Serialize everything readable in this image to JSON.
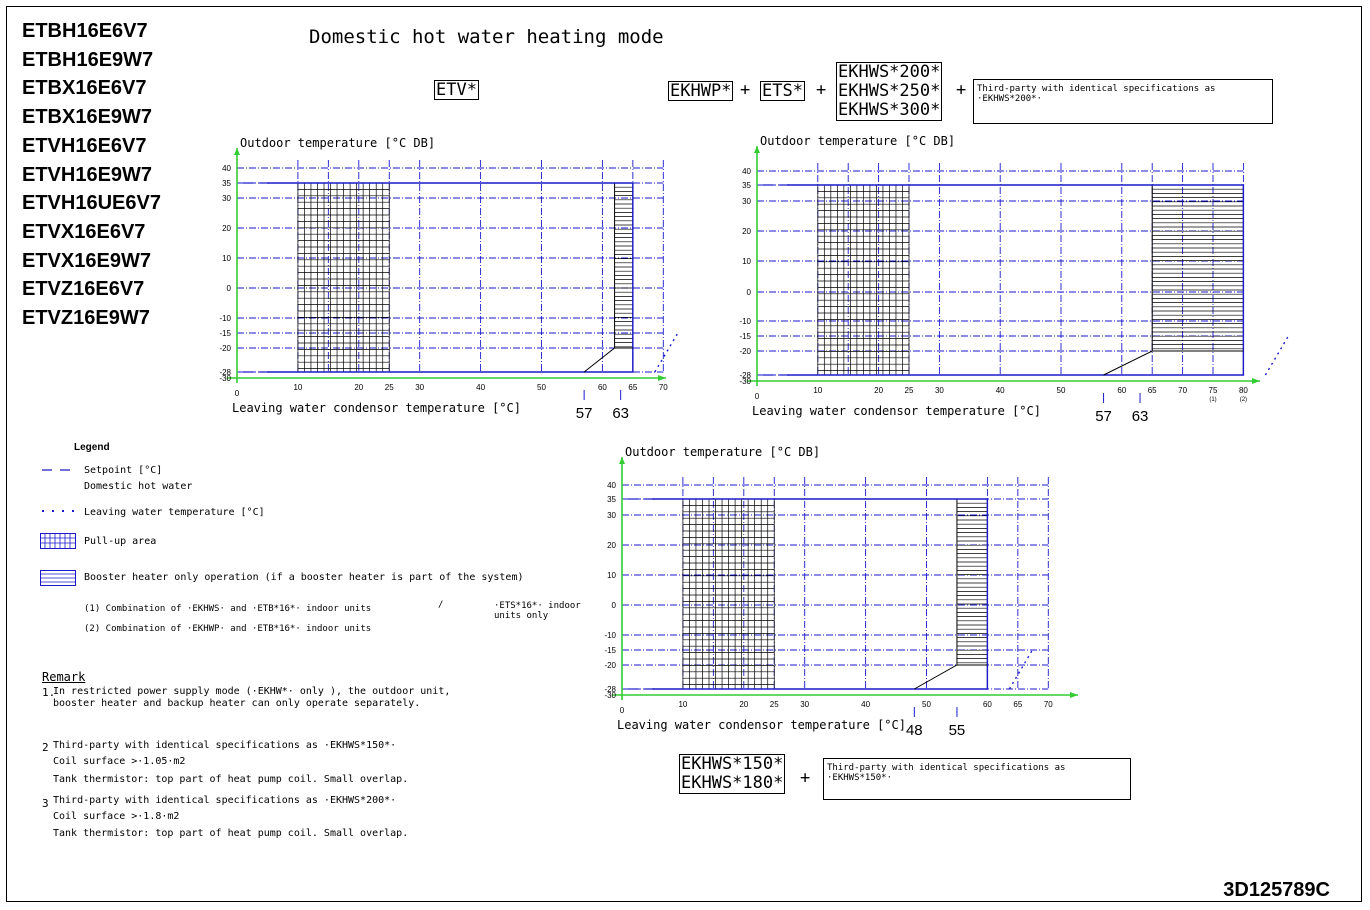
{
  "models": [
    "ETBH16E6V7",
    "ETBH16E9W7",
    "ETBX16E6V7",
    "ETBX16E9W7",
    "ETVH16E6V7",
    "ETVH16E9W7",
    "ETVH16UE6V7",
    "ETVX16E6V7",
    "ETVX16E9W7",
    "ETVZ16E6V7",
    "ETVZ16E9W7"
  ],
  "title": "Domestic hot water heating mode",
  "configs": {
    "etv": "ETV*",
    "ekhwp": "EKHWP*",
    "ets": "ETS*",
    "plus": "+",
    "ekhws200": "EKHWS*200*",
    "ekhws250": "EKHWS*250*",
    "ekhws300": "EKHWS*300*",
    "third_party_200": "Third-party with identical specifications as ·EKHWS*200*·",
    "ekhws150": "EKHWS*150*",
    "ekhws180": "EKHWS*180*",
    "third_party_150": "Third-party with identical specifications as ·EKHWS*150*·"
  },
  "chart_data": [
    {
      "type": "area",
      "ylabel": "Outdoor temperature [°C DB]",
      "xlabel": "Leaving water condensor temperature [°C]",
      "x_ticks": [
        "10",
        "20",
        "25",
        "30",
        "40",
        "50",
        "60",
        "65",
        "70"
      ],
      "y_ticks": [
        "40",
        "35",
        "30",
        "20",
        "10",
        "0",
        "-10",
        "-15",
        "-20",
        "-28",
        "-30"
      ],
      "origin_label": "0",
      "xlim": [
        0,
        70
      ],
      "ylim": [
        -30,
        43
      ],
      "pullup_x": [
        10,
        25
      ],
      "booster_x": [
        62,
        65
      ],
      "markers": [
        "57",
        "63"
      ]
    },
    {
      "type": "area",
      "ylabel": "Outdoor temperature [°C DB]",
      "xlabel": "Leaving water condensor temperature [°C]",
      "x_ticks": [
        "10",
        "20",
        "25",
        "30",
        "40",
        "50",
        "60",
        "65",
        "70",
        "75",
        "80"
      ],
      "x_notes": {
        "75": "(1)",
        "80": "(2)"
      },
      "y_ticks": [
        "40",
        "35",
        "30",
        "20",
        "10",
        "0",
        "-10",
        "-15",
        "-20",
        "-28",
        "-30"
      ],
      "origin_label": "0",
      "xlim": [
        0,
        80
      ],
      "ylim": [
        -30,
        43
      ],
      "pullup_x": [
        10,
        25
      ],
      "booster_x": [
        65,
        80
      ],
      "markers": [
        "57",
        "63"
      ]
    },
    {
      "type": "area",
      "ylabel": "Outdoor temperature [°C DB]",
      "xlabel": "Leaving water condensor temperature [°C]",
      "x_ticks": [
        "10",
        "20",
        "25",
        "30",
        "40",
        "50",
        "60",
        "65",
        "70"
      ],
      "y_ticks": [
        "40",
        "35",
        "30",
        "20",
        "10",
        "0",
        "-10",
        "-15",
        "-20",
        "-28",
        "-30"
      ],
      "origin_label": "0",
      "xlim": [
        0,
        70
      ],
      "ylim": [
        -30,
        43
      ],
      "pullup_x": [
        10,
        25
      ],
      "booster_x": [
        55,
        60
      ],
      "markers": [
        "48",
        "55"
      ]
    }
  ],
  "legend": {
    "title": "Legend",
    "setpoint": "Setpoint [°C]",
    "setpoint_sub": "Domestic hot water",
    "leaving_water": "Leaving water temperature [°C]",
    "pullup": "Pull-up area",
    "booster": "Booster heater only operation (if a booster heater is part of the system)",
    "note1": "(1) Combination of ·EKHWS· and ·ETB*16*· indoor units",
    "slash": "/",
    "note1b": "·ETS*16*· indoor units only",
    "note2": "(2) Combination of ·EKHWP· and ·ETB*16*· indoor units"
  },
  "remark": {
    "title": "Remark",
    "r1_num": "1.",
    "r1": "In restricted power supply mode (·EKHW*· only ), the outdoor unit,",
    "r1b": "booster heater and backup heater can only operate separately.",
    "r2_num": "2",
    "r2": "Third-party with identical specifications as ·EKHWS*150*·",
    "r2b": "Coil surface >·1.05·m2",
    "r2c": "Tank thermistor: top part of heat pump coil. Small overlap.",
    "r3_num": "3",
    "r3": "Third-party with identical specifications as ·EKHWS*200*·",
    "r3b": "Coil surface >·1.8·m2",
    "r3c": "Tank thermistor: top part of heat pump coil. Small overlap."
  },
  "doc_number": "3D125789C",
  "colors": {
    "grid": "#1a1acc",
    "axis": "#33cc33",
    "ink": "#000000"
  }
}
